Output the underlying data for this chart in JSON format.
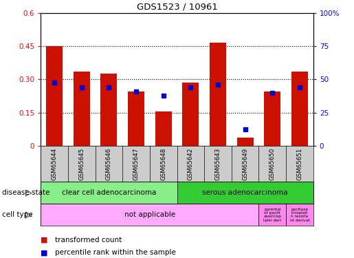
{
  "title": "GDS1523 / 10961",
  "samples": [
    "GSM65644",
    "GSM65645",
    "GSM65646",
    "GSM65647",
    "GSM65648",
    "GSM65642",
    "GSM65643",
    "GSM65649",
    "GSM65650",
    "GSM65651"
  ],
  "transformed_counts": [
    0.449,
    0.335,
    0.325,
    0.245,
    0.155,
    0.285,
    0.465,
    0.038,
    0.245,
    0.335
  ],
  "percentile_ranks_normalized": [
    0.285,
    0.265,
    0.265,
    0.245,
    0.225,
    0.265,
    0.275,
    0.075,
    0.24,
    0.265
  ],
  "ylim_left": [
    0,
    0.6
  ],
  "ylim_right": [
    0,
    100
  ],
  "yticks_left": [
    0,
    0.15,
    0.3,
    0.45,
    0.6
  ],
  "yticks_right": [
    0,
    25,
    50,
    75,
    100
  ],
  "ytick_labels_left": [
    "0",
    "0.15",
    "0.30",
    "0.45",
    "0.6"
  ],
  "ytick_labels_right": [
    "0",
    "25",
    "50",
    "75",
    "100%"
  ],
  "bar_color": "#cc1100",
  "dot_color": "#0000cc",
  "disease_state_colors": {
    "clear cell adenocarcinoma": "#88ee88",
    "serous adenocarcinoma": "#33cc33"
  },
  "cell_type_main_color": "#ffaaff",
  "cell_type_alt_color": "#ff88ee",
  "cell_type_alt1": "parental\nof paclit\naxel/cisp\nlatin deri",
  "cell_type_alt2": "pacltaxe\nl/cisplati\nn resista\nnt derivat",
  "legend_red_label": "transformed count",
  "legend_blue_label": "percentile rank within the sample",
  "row_label_disease": "disease state",
  "row_label_cell": "cell type",
  "header_bg": "#cccccc",
  "plot_bg": "#ffffff",
  "fig_width": 5.15,
  "fig_height": 3.75,
  "dpi": 100
}
